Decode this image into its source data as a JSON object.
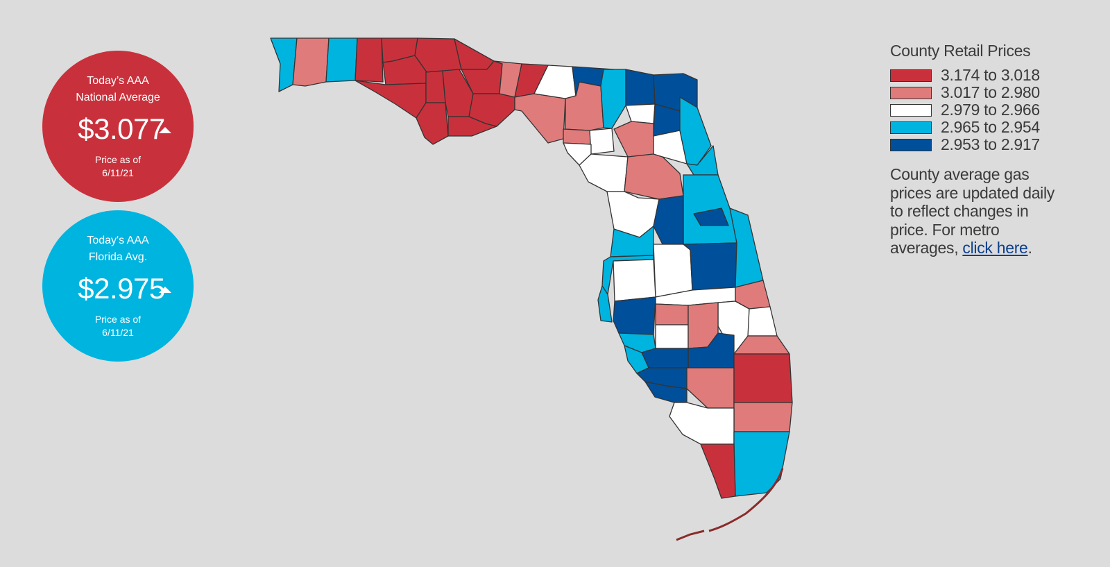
{
  "national": {
    "title_line1": "Today’s AAA",
    "title_line2": "National Average",
    "price": "$3.077",
    "trend": "up-triangle-icon",
    "asof_line1": "Price as of",
    "asof_line2": "6/11/21",
    "color": "#c8313c"
  },
  "florida": {
    "title_line1": "Today's AAA",
    "title_line2": "Florida Avg.",
    "price": "$2.975",
    "trend": "up-triangle-icon",
    "asof_line1": "Price as of",
    "asof_line2": "6/11/21",
    "color": "#00b4e0"
  },
  "legend": {
    "title": "County Retail Prices",
    "items": [
      {
        "label": "3.174 to 3.018",
        "color": "#c8313c"
      },
      {
        "label": "3.017 to 2.980",
        "color": "#e07b7b"
      },
      {
        "label": "2.979 to 2.966",
        "color": "#ffffff"
      },
      {
        "label": "2.965 to 2.954",
        "color": "#00b4e0"
      },
      {
        "label": "2.953 to 2.917",
        "color": "#004f9a"
      }
    ],
    "note": "County average gas prices are updated daily to reflect changes in price. For metro averages, ",
    "link": "click here",
    "note_end": "."
  }
}
